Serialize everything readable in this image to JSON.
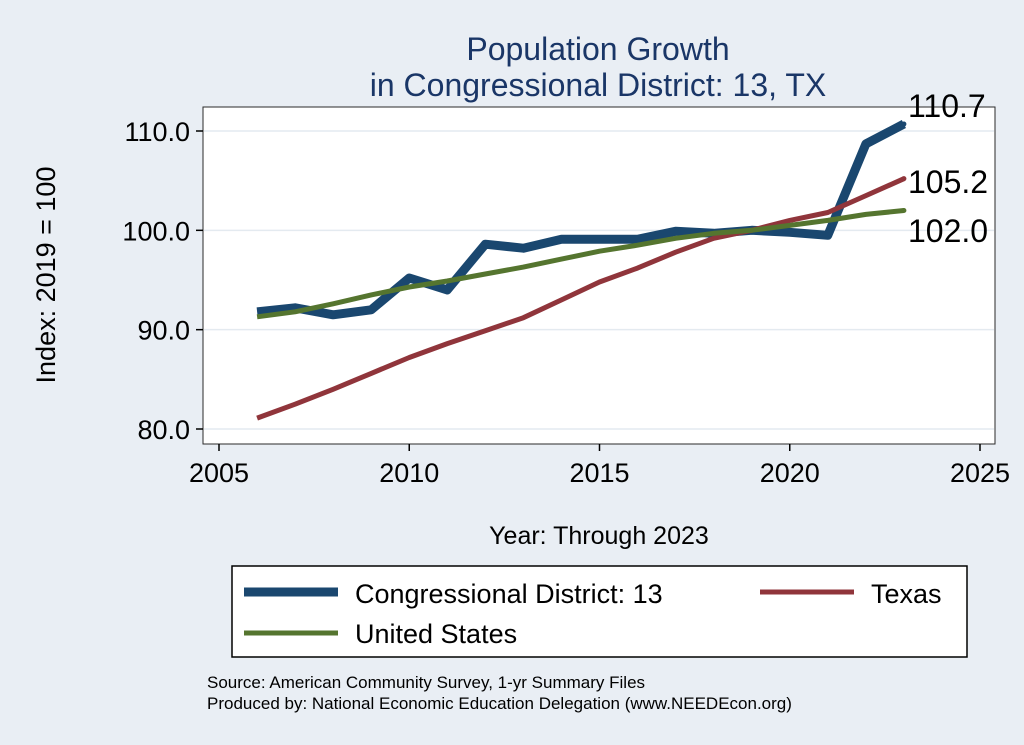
{
  "chart_data": {
    "type": "line",
    "title": [
      "Population Growth",
      "in Congressional District: 13, TX"
    ],
    "xlabel": "Year: Through 2023",
    "ylabel": "Index: 2019 = 100",
    "xlim": [
      2005,
      2025
    ],
    "ylim": [
      79,
      112
    ],
    "x_ticks": [
      2005,
      2010,
      2015,
      2020,
      2025
    ],
    "x_tick_labels": [
      "2005",
      "2010",
      "2015",
      "2020",
      "2025"
    ],
    "y_ticks": [
      80,
      90,
      100,
      110
    ],
    "y_tick_labels": [
      "80.0",
      "90.0",
      "100.0",
      "110.0"
    ],
    "grid": true,
    "legend_position": "bottom",
    "x": [
      2006,
      2007,
      2008,
      2009,
      2010,
      2011,
      2012,
      2013,
      2014,
      2015,
      2016,
      2017,
      2018,
      2019,
      2020,
      2021,
      2022,
      2023
    ],
    "series": [
      {
        "name": "Congressional District: 13",
        "color": "#1a476f",
        "values": [
          91.8,
          92.2,
          91.5,
          92.0,
          95.2,
          94.0,
          98.6,
          98.2,
          99.1,
          99.1,
          99.1,
          99.9,
          99.7,
          100.0,
          99.8,
          99.5,
          108.7,
          110.7
        ],
        "end_label": "110.7"
      },
      {
        "name": "Texas",
        "color": "#90353b",
        "values": [
          81.1,
          82.5,
          84.0,
          85.6,
          87.2,
          88.6,
          89.9,
          91.2,
          93.0,
          94.8,
          96.2,
          97.8,
          99.2,
          100.0,
          101.0,
          101.8,
          103.5,
          105.2
        ],
        "end_label": "105.2"
      },
      {
        "name": "United States",
        "color": "#55752f",
        "values": [
          91.3,
          91.8,
          92.6,
          93.5,
          94.3,
          94.9,
          95.6,
          96.3,
          97.1,
          97.9,
          98.5,
          99.2,
          99.7,
          100.0,
          100.5,
          101.0,
          101.6,
          102.0
        ],
        "end_label": "102.0"
      }
    ]
  },
  "footer": {
    "source": "Source: American Community Survey, 1-yr Summary Files",
    "produced_by": "Produced by: National Economic Education Delegation (www.NEEDEcon.org)"
  },
  "colors": {
    "background": "#e9eef4",
    "plot_background": "#ffffff",
    "title": "#1a3667",
    "grid": "#e4eaf0"
  }
}
